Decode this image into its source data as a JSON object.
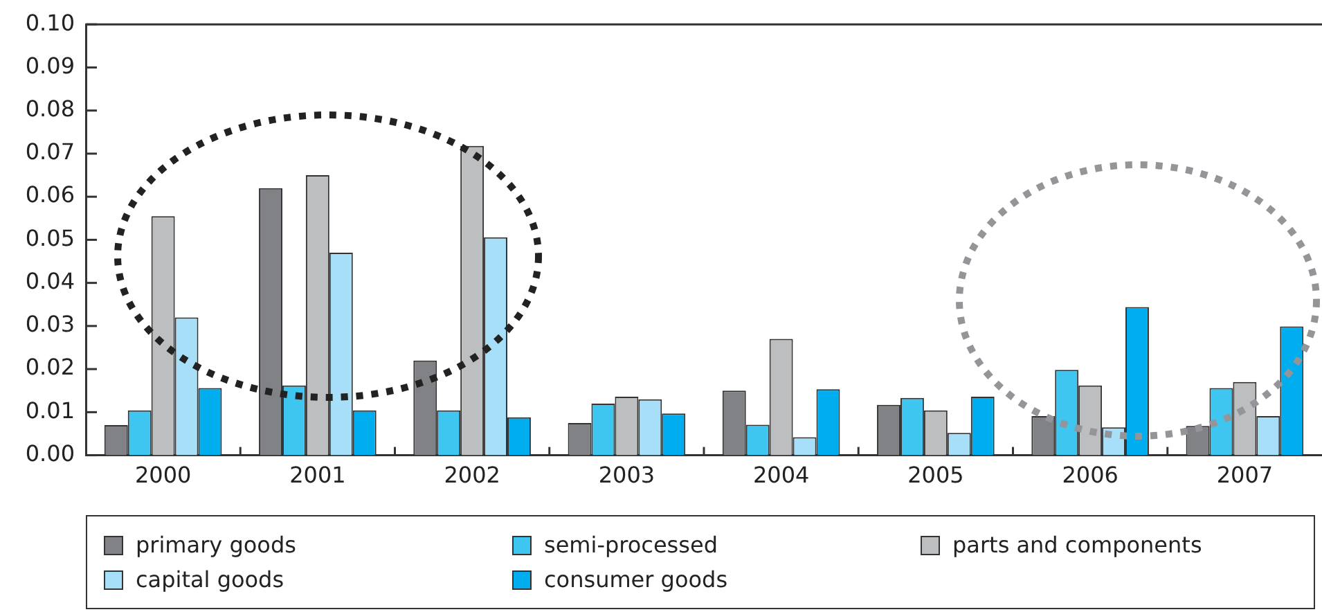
{
  "chart_data": {
    "type": "bar",
    "categories": [
      "2000",
      "2001",
      "2002",
      "2003",
      "2004",
      "2005",
      "2006",
      "2007"
    ],
    "series": [
      {
        "name": "primary goods",
        "color": "#808285",
        "values": [
          0.007,
          0.062,
          0.022,
          0.0075,
          0.015,
          0.0117,
          0.0091,
          0.0068
        ]
      },
      {
        "name": "semi-processed",
        "color": "#3fc6f0",
        "values": [
          0.0104,
          0.0162,
          0.0104,
          0.012,
          0.0071,
          0.0133,
          0.0198,
          0.0156
        ]
      },
      {
        "name": "parts and components",
        "color": "#bcbec0",
        "values": [
          0.0555,
          0.065,
          0.0718,
          0.0136,
          0.027,
          0.0104,
          0.0162,
          0.017
        ]
      },
      {
        "name": "capital goods",
        "color": "#a8dff8",
        "values": [
          0.032,
          0.047,
          0.0506,
          0.013,
          0.0042,
          0.0052,
          0.0065,
          0.0091
        ]
      },
      {
        "name": "consumer goods",
        "color": "#00aeef",
        "values": [
          0.0156,
          0.0104,
          0.0088,
          0.0097,
          0.0153,
          0.0136,
          0.0344,
          0.0299
        ]
      }
    ],
    "ylim": [
      0,
      0.1
    ],
    "yticks": [
      {
        "value": 0,
        "label": "0.00"
      },
      {
        "value": 0.01,
        "label": "0.01"
      },
      {
        "value": 0.02,
        "label": "0.02"
      },
      {
        "value": 0.03,
        "label": "0.03"
      },
      {
        "value": 0.04,
        "label": "0.04"
      },
      {
        "value": 0.05,
        "label": "0.05"
      },
      {
        "value": 0.06,
        "label": "0.06"
      },
      {
        "value": 0.07,
        "label": "0.07"
      },
      {
        "value": 0.08,
        "label": "0.08"
      },
      {
        "value": 0.09,
        "label": "0.09"
      },
      {
        "value": 0.1,
        "label": "0.10"
      }
    ],
    "grid": false,
    "legend": "bottom"
  }
}
